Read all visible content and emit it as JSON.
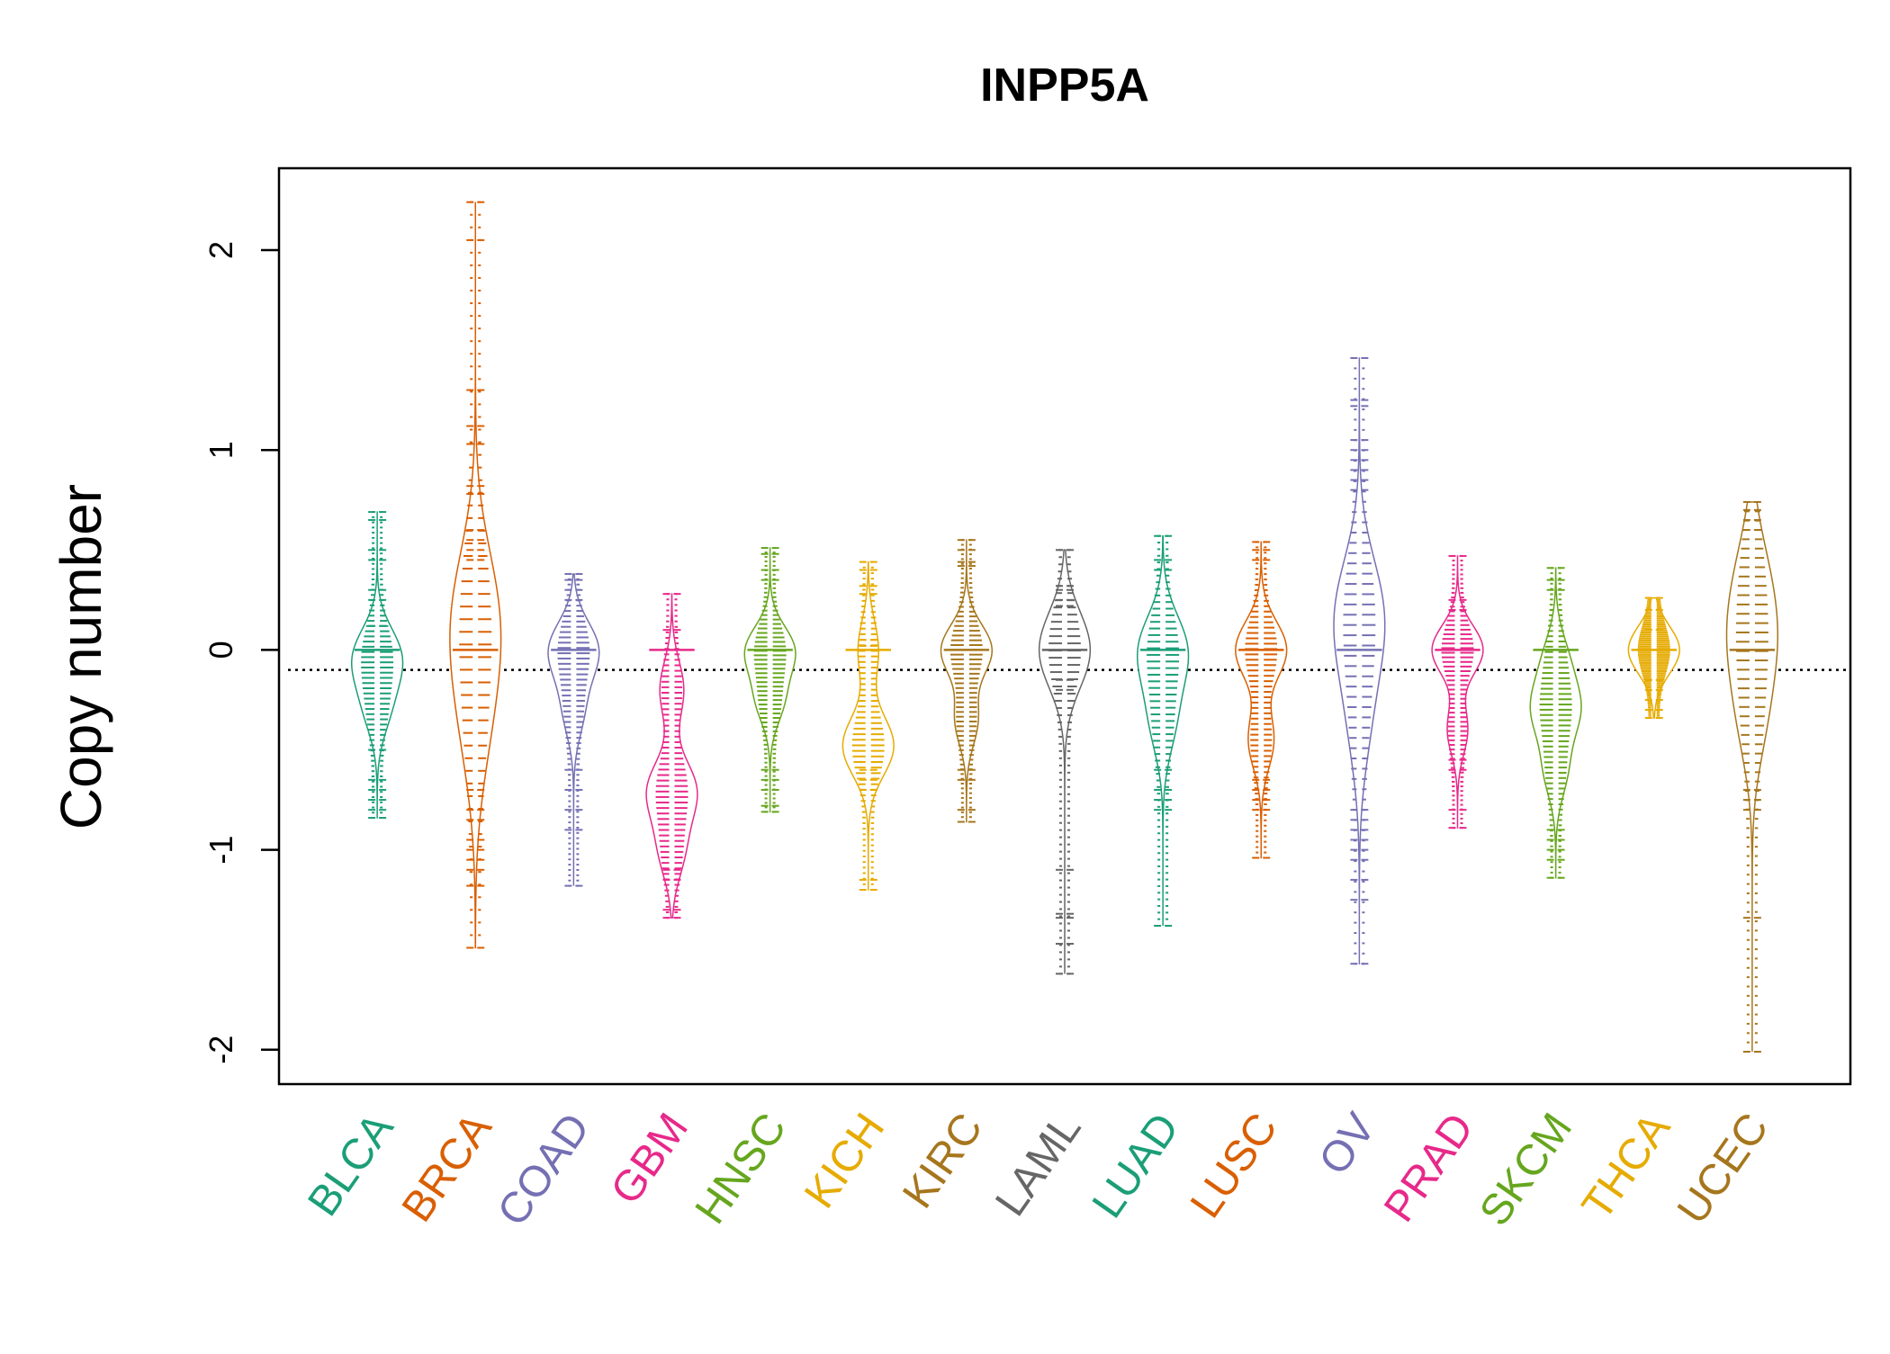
{
  "chart_data": {
    "type": "beanplot",
    "title": "INPP5A",
    "xlabel": "",
    "ylabel": "Copy number",
    "ylim": [
      -2.15,
      2.4
    ],
    "yticks": [
      -2,
      -1,
      0,
      1,
      2
    ],
    "ytick_labels": [
      "-2",
      "-1",
      "0",
      "1",
      "2"
    ],
    "reference_line": -0.1,
    "grid": false,
    "legend": "none",
    "categories": [
      "BLCA",
      "BRCA",
      "COAD",
      "GBM",
      "HNSC",
      "KICH",
      "KIRC",
      "LAML",
      "LUAD",
      "LUSC",
      "OV",
      "PRAD",
      "SKCM",
      "THCA",
      "UCEC"
    ],
    "series": [
      {
        "category": "BLCA",
        "color": "#1B9E77",
        "min": -0.84,
        "max": 0.69,
        "mean": -0.1,
        "modes": [
          {
            "at": -0.1,
            "amp": 0.5
          },
          {
            "at": -0.3,
            "amp": 0.55
          },
          {
            "at": 0.0,
            "amp": 0.8
          }
        ],
        "extremes": [
          0.69,
          0.65,
          0.5,
          0.45,
          0.3,
          0.25,
          0.12,
          -0.5,
          -0.65,
          -0.7,
          -0.75,
          -0.8,
          -0.84
        ]
      },
      {
        "category": "BRCA",
        "color": "#D95F02",
        "min": -1.49,
        "max": 2.24,
        "mean": -0.1,
        "modes": [
          {
            "at": 0.05,
            "amp": 1.0
          },
          {
            "at": -0.4,
            "amp": 0.7
          },
          {
            "at": 0.3,
            "amp": 0.7
          }
        ],
        "extremes": [
          2.24,
          2.05,
          1.3,
          1.12,
          1.03,
          0.82,
          0.78,
          0.6,
          0.55,
          0.5,
          0.45,
          -0.7,
          -0.8,
          -0.85,
          -0.95,
          -1.0,
          -1.05,
          -1.1,
          -1.18,
          -1.49
        ]
      },
      {
        "category": "COAD",
        "color": "#7570B3",
        "min": -1.18,
        "max": 0.38,
        "mean": -0.1,
        "modes": [
          {
            "at": 0.0,
            "amp": 1.0
          },
          {
            "at": -0.3,
            "amp": 0.4
          }
        ],
        "extremes": [
          0.38,
          0.35,
          0.3,
          0.25,
          -0.6,
          -0.7,
          -0.8,
          -0.9,
          -1.18
        ]
      },
      {
        "category": "GBM",
        "color": "#E7298A",
        "min": -1.34,
        "max": 0.28,
        "mean": -0.1,
        "modes": [
          {
            "at": -0.7,
            "amp": 1.0
          },
          {
            "at": -0.2,
            "amp": 0.5
          },
          {
            "at": -1.0,
            "amp": 0.5
          }
        ],
        "extremes": [
          0.28,
          0.1,
          -1.1,
          -1.15,
          -1.3,
          -1.34
        ]
      },
      {
        "category": "HNSC",
        "color": "#66A61E",
        "min": -0.81,
        "max": 0.51,
        "mean": -0.1,
        "modes": [
          {
            "at": 0.0,
            "amp": 1.0
          },
          {
            "at": -0.25,
            "amp": 0.55
          }
        ],
        "extremes": [
          0.51,
          0.48,
          0.4,
          0.35,
          -0.6,
          -0.65,
          -0.7,
          -0.78,
          -0.81
        ]
      },
      {
        "category": "KICH",
        "color": "#E6AB02",
        "min": -1.2,
        "max": 0.44,
        "mean": -0.1,
        "modes": [
          {
            "at": -0.48,
            "amp": 1.0
          },
          {
            "at": 0.0,
            "amp": 0.4
          }
        ],
        "extremes": [
          0.44,
          0.4,
          0.32,
          0.28,
          0.05,
          0.02,
          -0.6,
          -0.65,
          -0.7,
          -1.15,
          -1.2
        ]
      },
      {
        "category": "KIRC",
        "color": "#A6761D",
        "min": -0.86,
        "max": 0.55,
        "mean": -0.1,
        "modes": [
          {
            "at": 0.0,
            "amp": 1.0
          },
          {
            "at": -0.35,
            "amp": 0.45
          }
        ],
        "extremes": [
          0.55,
          0.5,
          0.44,
          0.42,
          -0.6,
          -0.65,
          -0.8,
          -0.86
        ]
      },
      {
        "category": "LAML",
        "color": "#666666",
        "min": -1.62,
        "max": 0.5,
        "mean": -0.1,
        "modes": [
          {
            "at": 0.0,
            "amp": 1.0
          }
        ],
        "extremes": [
          0.5,
          0.32,
          0.3,
          0.25,
          0.22,
          -0.15,
          -0.2,
          -1.1,
          -1.32,
          -1.34,
          -1.47,
          -1.62
        ]
      },
      {
        "category": "LUAD",
        "color": "#1B9E77",
        "min": -1.38,
        "max": 0.57,
        "mean": -0.1,
        "modes": [
          {
            "at": 0.0,
            "amp": 1.0
          },
          {
            "at": -0.35,
            "amp": 0.5
          }
        ],
        "extremes": [
          0.57,
          0.45,
          0.4,
          -0.6,
          -0.7,
          -0.75,
          -0.8,
          -1.38
        ]
      },
      {
        "category": "LUSC",
        "color": "#D95F02",
        "min": -1.04,
        "max": 0.54,
        "mean": -0.1,
        "modes": [
          {
            "at": 0.0,
            "amp": 1.0
          },
          {
            "at": -0.45,
            "amp": 0.5
          }
        ],
        "extremes": [
          0.54,
          0.5,
          0.45,
          -0.65,
          -0.7,
          -0.75,
          -0.8,
          -1.04
        ]
      },
      {
        "category": "OV",
        "color": "#7570B3",
        "min": -1.57,
        "max": 1.46,
        "mean": -0.1,
        "modes": [
          {
            "at": 0.1,
            "amp": 0.9
          },
          {
            "at": -0.35,
            "amp": 0.5
          },
          {
            "at": 0.3,
            "amp": 0.5
          }
        ],
        "extremes": [
          1.46,
          1.25,
          1.22,
          1.05,
          1.0,
          0.95,
          0.9,
          0.85,
          0.8,
          -0.8,
          -0.85,
          -0.9,
          -0.95,
          -1.0,
          -1.05,
          -1.15,
          -1.25,
          -1.57
        ]
      },
      {
        "category": "PRAD",
        "color": "#E7298A",
        "min": -0.89,
        "max": 0.47,
        "mean": -0.1,
        "modes": [
          {
            "at": 0.0,
            "amp": 1.0
          },
          {
            "at": -0.4,
            "amp": 0.4
          }
        ],
        "extremes": [
          0.47,
          0.25,
          0.2,
          -0.55,
          -0.6,
          -0.8,
          -0.89
        ]
      },
      {
        "category": "SKCM",
        "color": "#66A61E",
        "min": -1.14,
        "max": 0.41,
        "mean": -0.1,
        "modes": [
          {
            "at": -0.3,
            "amp": 1.0
          },
          {
            "at": -0.6,
            "amp": 0.5
          },
          {
            "at": -0.05,
            "amp": 0.5
          }
        ],
        "extremes": [
          0.41,
          0.35,
          0.3,
          -0.9,
          -0.95,
          -1.0,
          -1.05,
          -1.14
        ]
      },
      {
        "category": "THCA",
        "color": "#E6AB02",
        "min": -0.34,
        "max": 0.26,
        "mean": -0.1,
        "modes": [
          {
            "at": 0.0,
            "amp": 1.0
          }
        ],
        "extremes": [
          0.26,
          0.2,
          0.1,
          -0.15,
          -0.2,
          -0.25,
          -0.3,
          -0.34
        ]
      },
      {
        "category": "UCEC",
        "color": "#A6761D",
        "min": -2.01,
        "max": 0.74,
        "mean": -0.1,
        "modes": [
          {
            "at": 0.05,
            "amp": 0.9
          },
          {
            "at": -0.35,
            "amp": 0.55
          },
          {
            "at": 0.4,
            "amp": 0.55
          }
        ],
        "extremes": [
          0.74,
          0.7,
          0.65,
          0.6,
          -0.7,
          -0.75,
          -0.8,
          -1.34,
          -2.01
        ]
      }
    ]
  }
}
